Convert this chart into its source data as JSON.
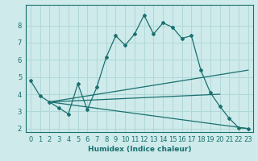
{
  "xlabel": "Humidex (Indice chaleur)",
  "background_color": "#ceeaea",
  "grid_color": "#b0d8d8",
  "line_color": "#1a7070",
  "xlim": [
    -0.5,
    23.5
  ],
  "ylim": [
    1.8,
    9.2
  ],
  "yticks": [
    2,
    3,
    4,
    5,
    6,
    7,
    8
  ],
  "xticks": [
    0,
    1,
    2,
    3,
    4,
    5,
    6,
    7,
    8,
    9,
    10,
    11,
    12,
    13,
    14,
    15,
    16,
    17,
    18,
    19,
    20,
    21,
    22,
    23
  ],
  "lines": [
    {
      "x": [
        0,
        1,
        2,
        3,
        4,
        5,
        6,
        7,
        8,
        9,
        10,
        11,
        12,
        13,
        14,
        15,
        16,
        17,
        18,
        19,
        20,
        21,
        22,
        23
      ],
      "y": [
        4.8,
        3.9,
        3.55,
        3.2,
        2.85,
        4.6,
        3.1,
        4.4,
        6.15,
        7.4,
        6.85,
        7.5,
        8.6,
        7.5,
        8.15,
        7.9,
        7.25,
        7.4,
        5.4,
        4.1,
        3.3,
        2.6,
        2.05,
        2.0
      ],
      "has_markers": true
    },
    {
      "x": [
        2,
        23
      ],
      "y": [
        3.55,
        5.4
      ],
      "has_markers": false
    },
    {
      "x": [
        2,
        20
      ],
      "y": [
        3.55,
        4.0
      ],
      "has_markers": false
    },
    {
      "x": [
        2,
        23
      ],
      "y": [
        3.55,
        2.0
      ],
      "has_markers": false
    }
  ]
}
